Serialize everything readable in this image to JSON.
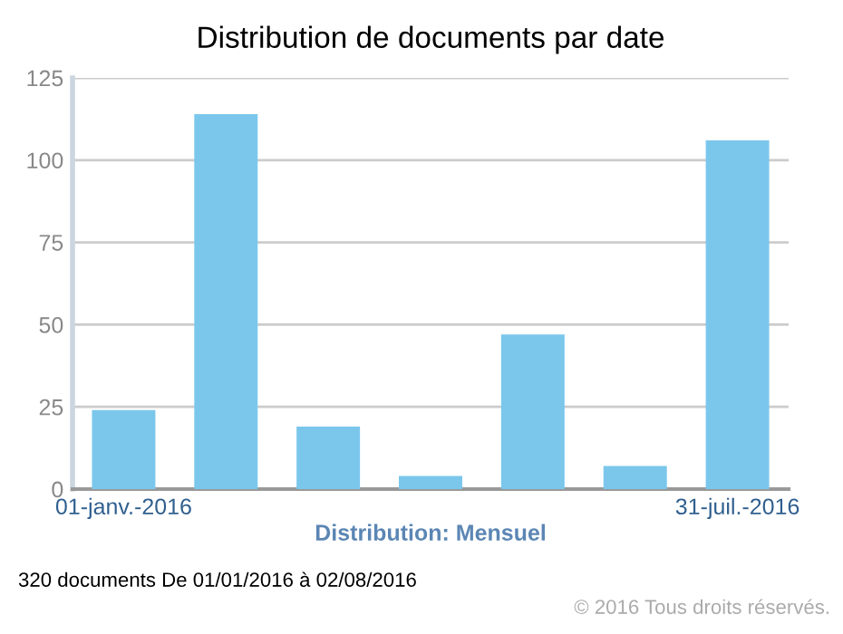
{
  "chart_data": {
    "type": "bar",
    "title": "Distribution de documents par date",
    "xlabel": "Distribution: Mensuel",
    "categories": [
      "01-janv.-2016",
      null,
      null,
      null,
      null,
      null,
      "31-juil.-2016"
    ],
    "values": [
      24,
      114,
      19,
      4,
      47,
      7,
      106
    ],
    "color": "#7bc7ec",
    "ylim": [
      0,
      125
    ],
    "yticks": [
      0,
      25,
      50,
      75,
      100,
      125
    ],
    "grid": "y",
    "legend": false,
    "annotations": [
      "320 documents De 01/01/2016 à 02/08/2016",
      "© 2016 Tous droits réservés."
    ]
  }
}
